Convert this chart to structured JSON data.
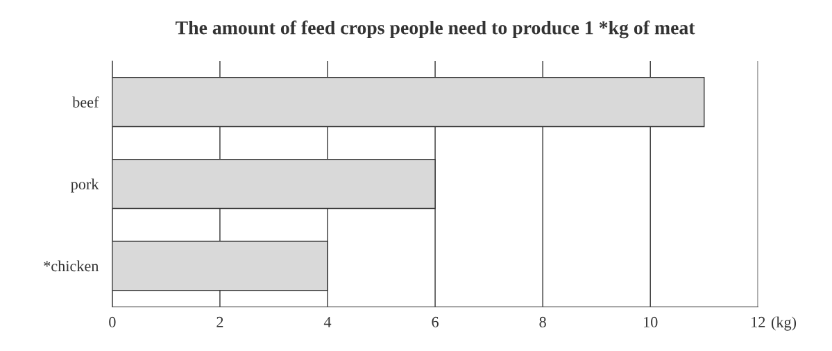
{
  "chart_data": {
    "type": "bar",
    "orientation": "horizontal",
    "title": "The amount of feed crops people need to produce 1 *kg of meat",
    "xlabel": "(kg)",
    "categories": [
      "beef",
      "pork",
      "*chicken"
    ],
    "values": [
      11,
      6,
      4
    ],
    "color": "#d9d9d9",
    "xlim": [
      0,
      12
    ],
    "xticks": [
      0,
      2,
      4,
      6,
      8,
      10,
      12
    ],
    "grid": "x"
  }
}
